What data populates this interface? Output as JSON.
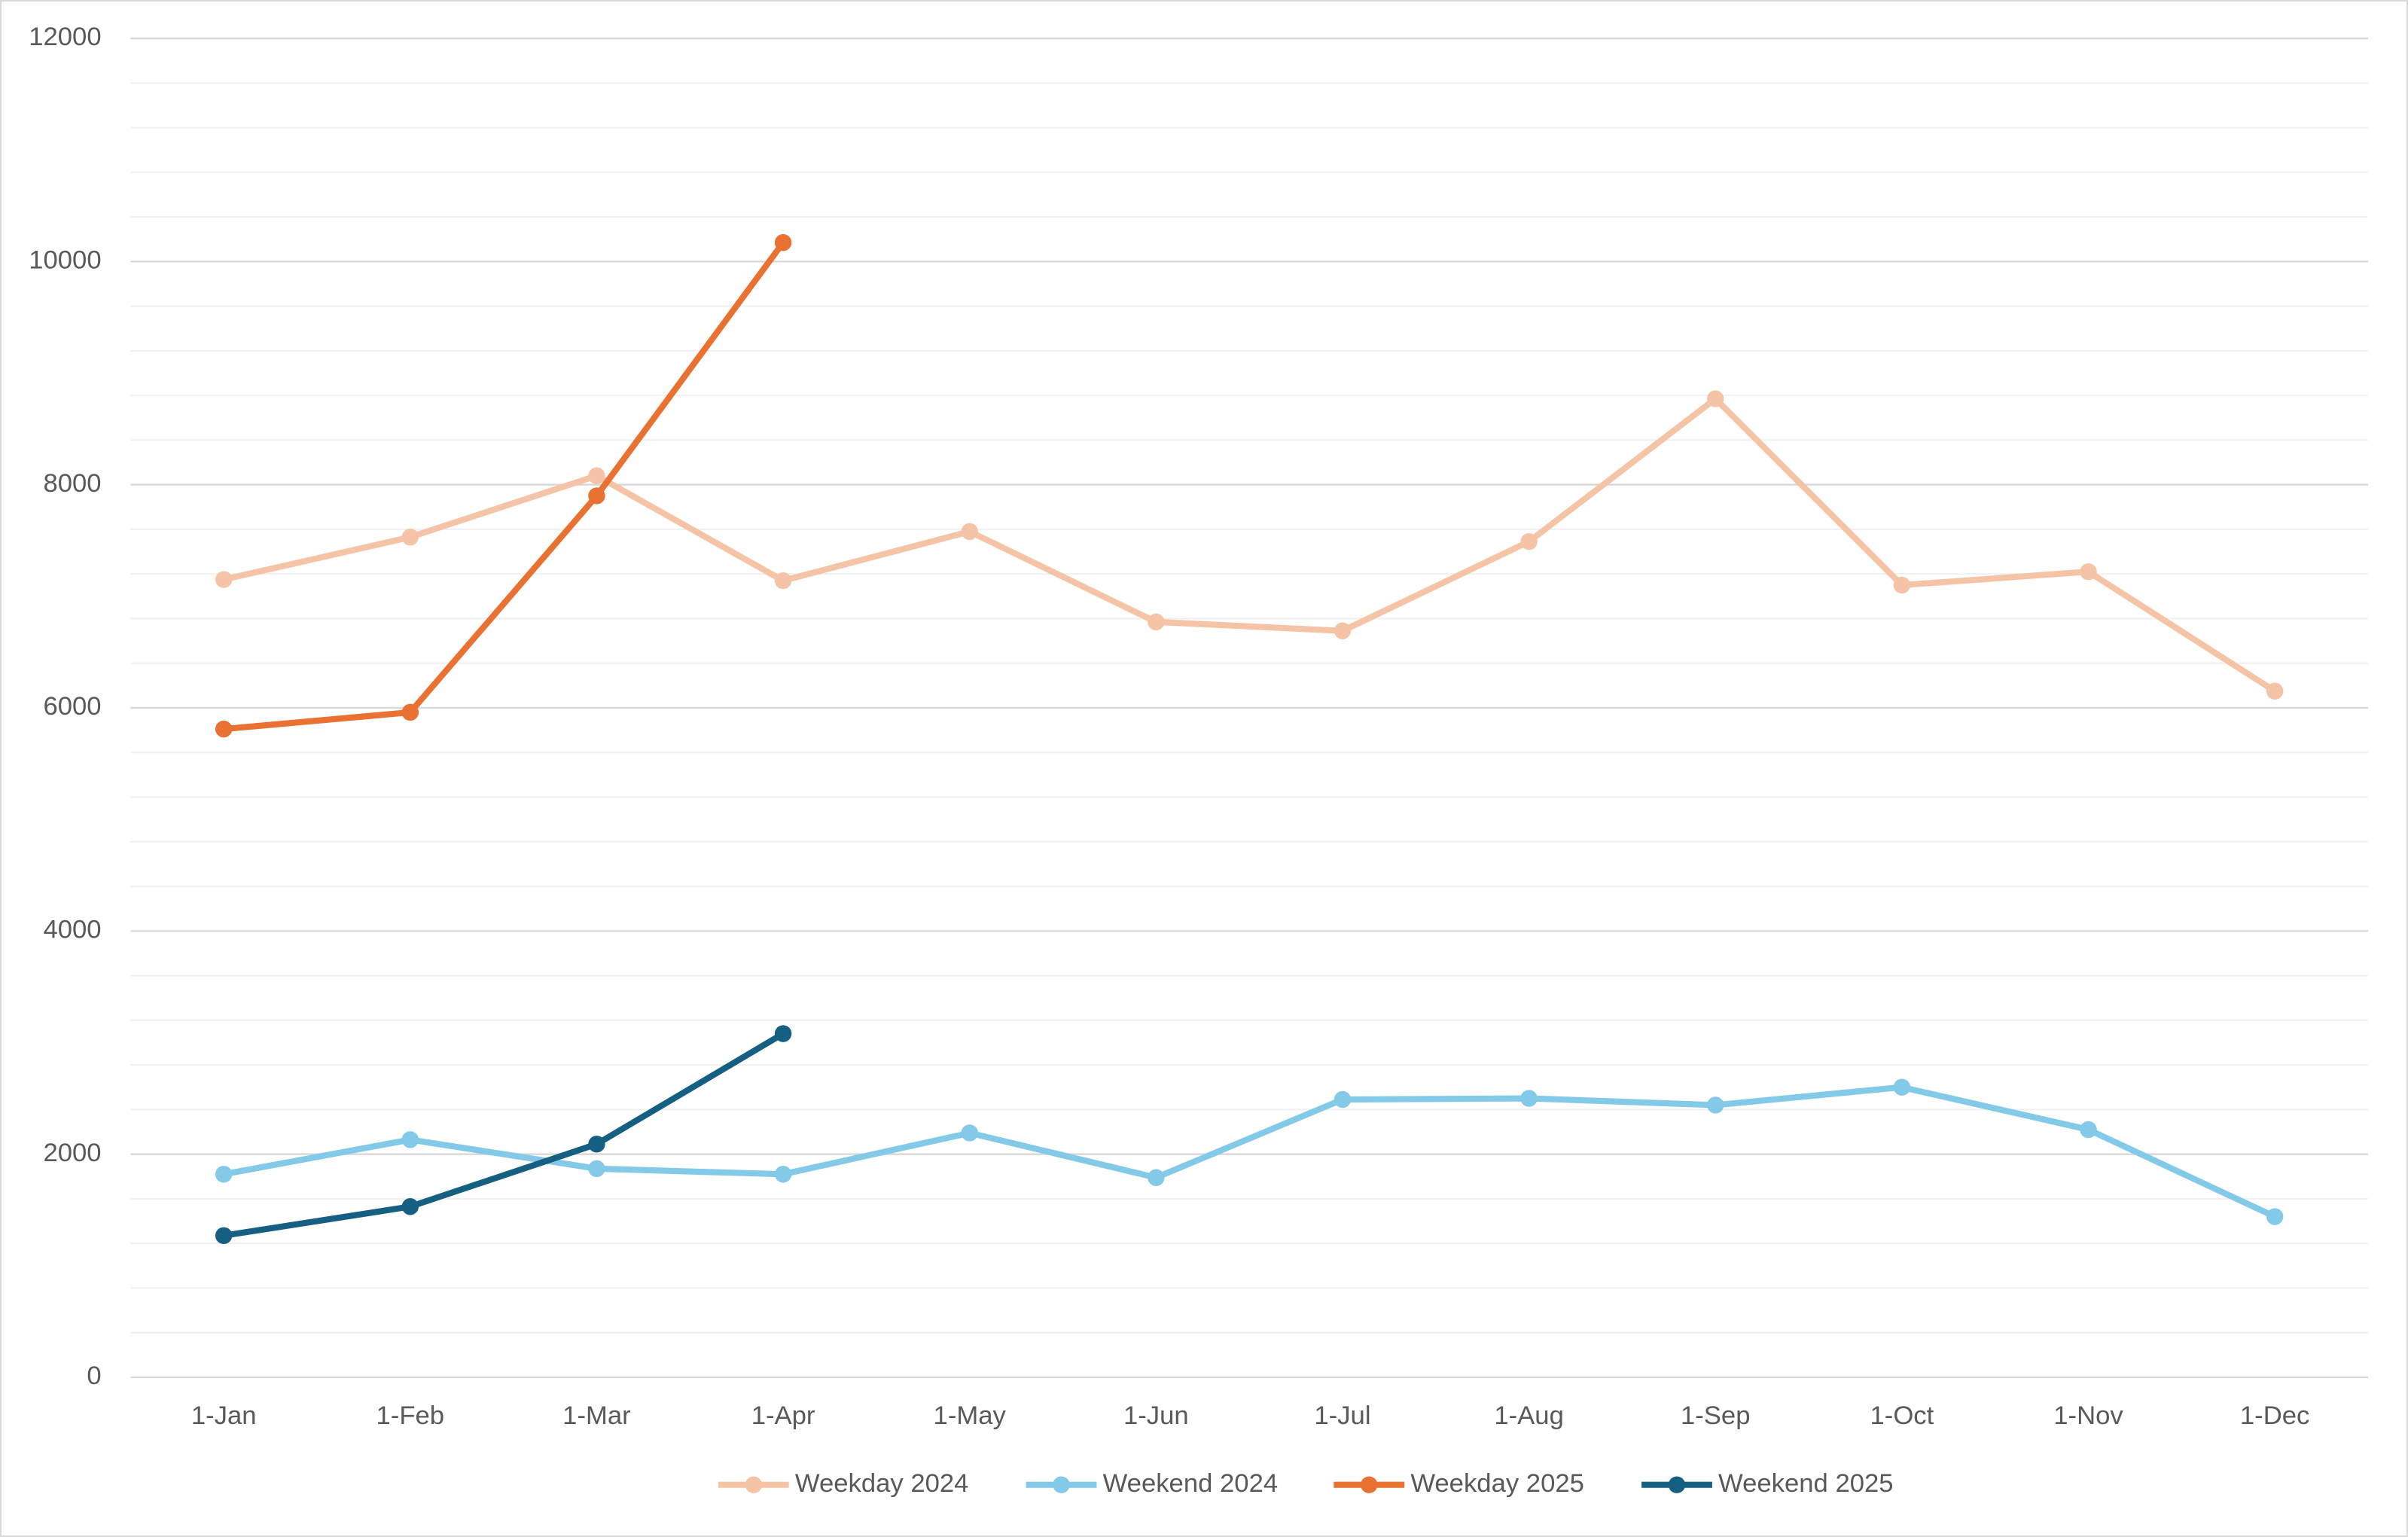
{
  "chart_data": {
    "type": "line",
    "categories": [
      "1-Jan",
      "1-Feb",
      "1-Mar",
      "1-Apr",
      "1-May",
      "1-Jun",
      "1-Jul",
      "1-Aug",
      "1-Sep",
      "1-Oct",
      "1-Nov",
      "1-Dec"
    ],
    "series": [
      {
        "name": "Weekday 2024",
        "color": "#f5c4a7",
        "values": [
          7150,
          7530,
          8080,
          7140,
          7580,
          6770,
          6690,
          7490,
          8770,
          7100,
          7220,
          6150
        ]
      },
      {
        "name": "Weekend 2024",
        "color": "#83c9e8",
        "values": [
          1820,
          2130,
          1870,
          1820,
          2190,
          1790,
          2490,
          2500,
          2440,
          2600,
          2220,
          1440
        ]
      },
      {
        "name": "Weekday 2025",
        "color": "#e97132",
        "values": [
          5810,
          5960,
          7900,
          10170,
          null,
          null,
          null,
          null,
          null,
          null,
          null,
          null
        ]
      },
      {
        "name": "Weekend 2025",
        "color": "#156082",
        "values": [
          1270,
          1530,
          2090,
          3080,
          null,
          null,
          null,
          null,
          null,
          null,
          null,
          null
        ]
      }
    ],
    "ylim": [
      0,
      12000
    ],
    "yticks": [
      0,
      2000,
      4000,
      6000,
      8000,
      10000,
      12000
    ],
    "minor_yticks": [
      400,
      800,
      1200,
      1600,
      2400,
      2800,
      3200,
      3600,
      4400,
      4800,
      5200,
      5600,
      6400,
      6800,
      7200,
      7600,
      8400,
      8800,
      9200,
      9600,
      10400,
      10800,
      11200,
      11600
    ],
    "grid": true,
    "legend": "bottom"
  }
}
